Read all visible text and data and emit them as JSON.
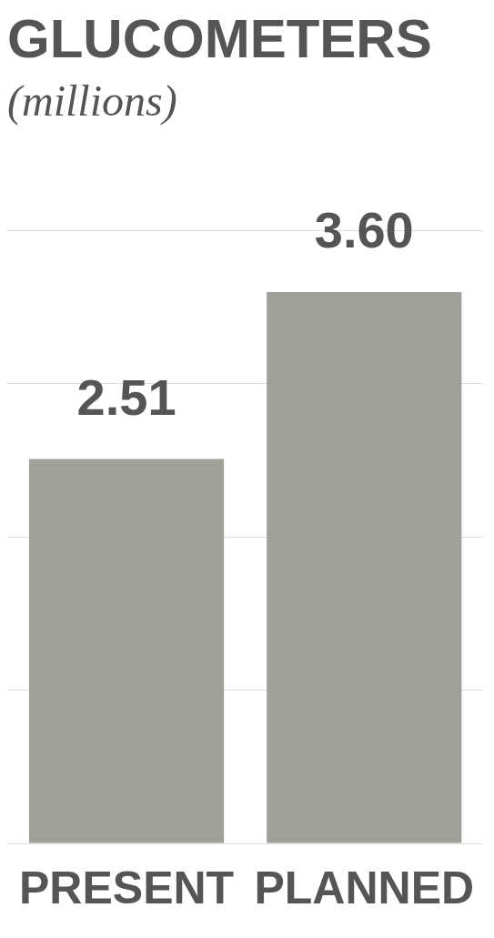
{
  "chart_data": {
    "type": "bar",
    "title": "GLUCOMETERS",
    "subtitle": "(millions)",
    "categories": [
      "PRESENT",
      "PLANNED"
    ],
    "values": [
      2.51,
      3.6
    ],
    "color": "#9fa098",
    "value_labels": [
      "2.51",
      "3.60"
    ],
    "ylim": [
      0,
      4
    ],
    "yticks": [
      {
        "value": 0,
        "label": null
      },
      {
        "value": 1,
        "label": null
      },
      {
        "value": 2,
        "label": null
      },
      {
        "value": 3,
        "label": null
      },
      {
        "value": 4,
        "label": null
      }
    ],
    "grid": "y",
    "tick_labels": "x",
    "legend": false
  }
}
